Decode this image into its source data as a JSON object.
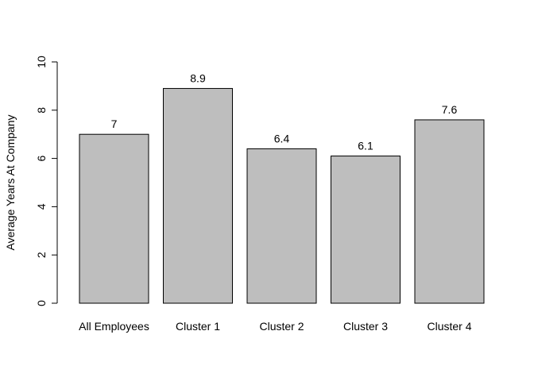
{
  "chart_data": {
    "type": "bar",
    "categories": [
      "All Employees",
      "Cluster 1",
      "Cluster 2",
      "Cluster 3",
      "Cluster 4"
    ],
    "values": [
      7,
      8.9,
      6.4,
      6.1,
      7.6
    ],
    "value_labels": [
      "7",
      "8.9",
      "6.4",
      "6.1",
      "7.6"
    ],
    "title": "",
    "xlabel": "",
    "ylabel": "Average Years At Company",
    "ylim": [
      0,
      10
    ],
    "yticks": [
      0,
      2,
      4,
      6,
      8,
      10
    ],
    "grid": false,
    "bar_color": "#bebebe",
    "bar_border_color": "#000000"
  }
}
